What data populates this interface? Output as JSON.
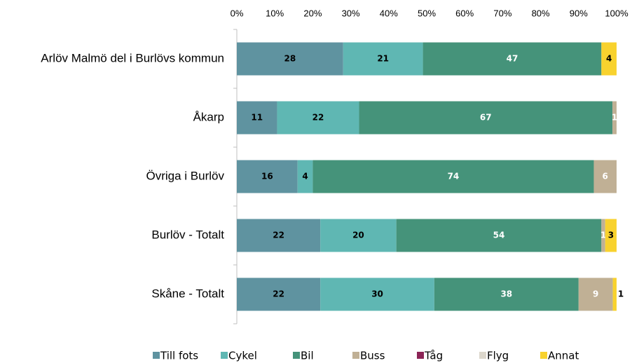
{
  "chart_data": {
    "type": "stacked_barh",
    "categories": [
      "Arlöv Malmö del i Burlövs kommun",
      "Åkarp",
      "Övriga i Burlöv",
      "Burlöv - Totalt",
      "Skåne - Totalt"
    ],
    "series": [
      {
        "name": "Till fots",
        "color": "#5f93a0",
        "values": [
          28,
          10.6,
          16,
          22,
          22
        ],
        "value_labels": [
          "28",
          "11",
          "16",
          "22",
          "22"
        ]
      },
      {
        "name": "Cykel",
        "color": "#5fb7b3",
        "values": [
          21,
          21.6,
          4,
          20,
          30
        ],
        "value_labels": [
          "21",
          "22",
          "4",
          "20",
          "30"
        ]
      },
      {
        "name": "Bil",
        "color": "#45937a",
        "values": [
          47,
          66.7,
          74,
          54,
          38
        ],
        "value_labels": [
          "47",
          "67",
          "74",
          "54",
          "38"
        ]
      },
      {
        "name": "Buss",
        "color": "#c0b095",
        "values": [
          0,
          1.1,
          6,
          1,
          9
        ],
        "value_labels": [
          null,
          "1",
          "6",
          "1",
          "9"
        ]
      },
      {
        "name": "Tåg",
        "color": "#8b2456",
        "values": [
          0,
          0,
          0,
          0,
          0
        ],
        "value_labels": [
          null,
          null,
          null,
          null,
          null
        ]
      },
      {
        "name": "Flyg",
        "color": "#dcd7cc",
        "values": [
          0,
          0,
          0,
          0,
          0
        ],
        "value_labels": [
          null,
          null,
          null,
          null,
          null
        ]
      },
      {
        "name": "Annat",
        "color": "#f8d22e",
        "values": [
          4,
          0,
          0,
          3,
          1
        ],
        "value_labels": [
          "4",
          null,
          null,
          "3",
          "1"
        ]
      }
    ],
    "xlim": [
      0,
      100
    ],
    "xticks": [
      {
        "value": 0,
        "label": "0%"
      },
      {
        "value": 10,
        "label": "10%"
      },
      {
        "value": 20,
        "label": "20%"
      },
      {
        "value": 30,
        "label": "30%"
      },
      {
        "value": 40,
        "label": "40%"
      },
      {
        "value": 50,
        "label": "50%"
      },
      {
        "value": 60,
        "label": "60%"
      },
      {
        "value": 70,
        "label": "70%"
      },
      {
        "value": 80,
        "label": "80%"
      },
      {
        "value": 90,
        "label": "90%"
      },
      {
        "value": 100,
        "label": "100%"
      }
    ],
    "legend": "bottom"
  }
}
